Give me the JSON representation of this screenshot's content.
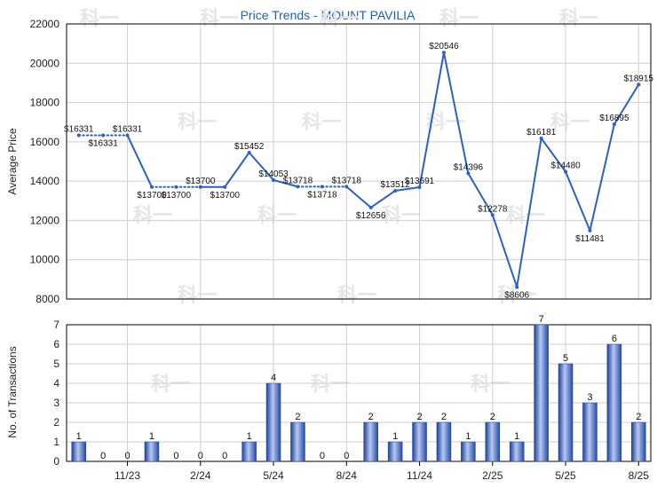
{
  "chart_data": [
    {
      "type": "line",
      "title": "Price Trends - MOUNT PAVILIA",
      "ylabel": "Average Price",
      "ylim": [
        8000,
        22000
      ],
      "yticks": [
        "8000",
        "10000",
        "12000",
        "14000",
        "16000",
        "18000",
        "20000",
        "22000"
      ],
      "xticks": [
        "11/23",
        "2/24",
        "5/24",
        "8/24",
        "11/24",
        "2/25",
        "5/25",
        "8/25"
      ],
      "xtick_index": [
        2,
        5,
        8,
        11,
        14,
        17,
        20,
        23
      ],
      "grid": true,
      "series": [
        {
          "values": [
            16331,
            16331,
            16331,
            13700,
            13700,
            13700,
            13700,
            15452,
            14053,
            13718,
            13718,
            13718,
            12656,
            13512,
            13691,
            20546,
            14396,
            12278,
            8606,
            16181,
            14480,
            11481,
            16895,
            18915
          ],
          "labels": [
            "$16331",
            "$16331",
            "$16331",
            "$13700",
            "$13700",
            "$13700",
            "$13700",
            "$15452",
            "$14053",
            "$13718",
            "$13718",
            "$13718",
            "$12656",
            "$13512",
            "$13691",
            "$20546",
            "$14396",
            "$12278",
            "$8606",
            "$16181",
            "$14480",
            "$11481",
            "$16895",
            "$18915"
          ],
          "segment_style": [
            "dotted",
            "dotted",
            "solid",
            "dotted",
            "dotted",
            "solid",
            "solid",
            "solid",
            "solid",
            "dotted",
            "dotted",
            "solid",
            "solid",
            "solid",
            "solid",
            "solid",
            "solid",
            "solid",
            "solid",
            "solid",
            "solid",
            "solid",
            "solid"
          ],
          "color": "#2a5fd0"
        }
      ]
    },
    {
      "type": "bar",
      "ylabel": "No. of Transactions",
      "ylim": [
        0,
        7
      ],
      "yticks": [
        "0",
        "1",
        "2",
        "3",
        "4",
        "5",
        "6",
        "7"
      ],
      "xticks": [
        "11/23",
        "2/24",
        "5/24",
        "8/24",
        "11/24",
        "2/25",
        "5/25",
        "8/25"
      ],
      "grid": true,
      "values": [
        1,
        0,
        0,
        1,
        0,
        0,
        0,
        1,
        4,
        2,
        0,
        0,
        2,
        1,
        2,
        2,
        1,
        2,
        1,
        7,
        5,
        3,
        6,
        2
      ],
      "value_labels": [
        "1",
        "0",
        "0",
        "1",
        "0",
        "0",
        "0",
        "1",
        "4",
        "2",
        "0",
        "0",
        "2",
        "1",
        "2",
        "2",
        "1",
        "2",
        "1",
        "7",
        "5",
        "3",
        "6",
        "2"
      ],
      "color": "#3a66c8"
    }
  ],
  "watermark": "科一"
}
